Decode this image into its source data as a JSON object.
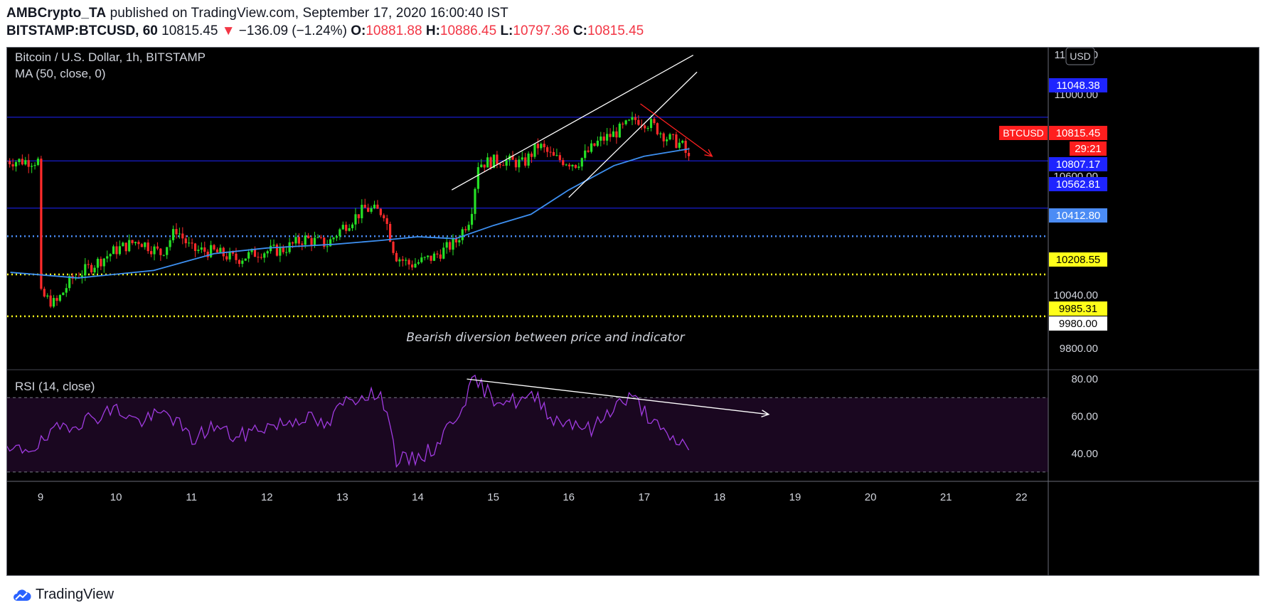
{
  "header": {
    "author": "AMBCrypto_TA",
    "published": " published on TradingView.com, September 17, 2020 16:00:40 IST",
    "symbol": "BITSTAMP:BTCUSD, 60",
    "last": "10815.45",
    "change_arrow": "▼",
    "change": "−136.09 (−1.24%)",
    "o_label": "O:",
    "o_value": "10881.88",
    "h_label": "H:",
    "h_value": "10886.45",
    "l_label": "L:",
    "l_value": "10797.36",
    "c_label": "C:",
    "c_value": "10815.45"
  },
  "legend": {
    "title": "Bitcoin / U.S. Dollar, 1h, BITSTAMP",
    "ma": "MA (50, close, 0)",
    "rsi": "RSI (14, close)",
    "currency_button": "USD"
  },
  "annotation": "Bearish diversion between price and indicator",
  "footer": {
    "brand": "TradingView"
  },
  "colors": {
    "up": "#26e026",
    "down": "#ff2b2b",
    "ma": "#3d8ff0",
    "rsi": "#a03be0",
    "level_blue": "#1e24ff",
    "level_dotted_blue": "#4b8cf5",
    "level_yellow": "#ffff1a",
    "trendline": "#ffffff",
    "bear_arrow": "#ff2020",
    "rsi_band": "#1a0720"
  },
  "chart_data": [
    {
      "type": "candlestick",
      "title": "Bitcoin / U.S. Dollar, 1h, BITSTAMP",
      "x_ticks": [
        "9",
        "10",
        "11",
        "12",
        "13",
        "14",
        "15",
        "16",
        "17",
        "18",
        "19",
        "20",
        "21",
        "22"
      ],
      "y_ticks": [
        "11400.00",
        "11000.00",
        "10600.00",
        "10040.00",
        "9800.00"
      ],
      "ylim": [
        9700,
        11420
      ],
      "close_series": [
        {
          "day": 9.0,
          "close": 10100
        },
        {
          "day": 9.2,
          "close": 10050
        },
        {
          "day": 9.4,
          "close": 10180
        },
        {
          "day": 9.7,
          "close": 10260
        },
        {
          "day": 10.0,
          "close": 10340
        },
        {
          "day": 10.3,
          "close": 10390
        },
        {
          "day": 10.6,
          "close": 10320
        },
        {
          "day": 10.8,
          "close": 10450
        },
        {
          "day": 11.0,
          "close": 10340
        },
        {
          "day": 11.3,
          "close": 10330
        },
        {
          "day": 11.6,
          "close": 10290
        },
        {
          "day": 11.9,
          "close": 10330
        },
        {
          "day": 12.2,
          "close": 10340
        },
        {
          "day": 12.5,
          "close": 10400
        },
        {
          "day": 12.8,
          "close": 10370
        },
        {
          "day": 13.0,
          "close": 10460
        },
        {
          "day": 13.3,
          "close": 10560
        },
        {
          "day": 13.55,
          "close": 10540
        },
        {
          "day": 13.7,
          "close": 10310
        },
        {
          "day": 13.9,
          "close": 10260
        },
        {
          "day": 14.2,
          "close": 10300
        },
        {
          "day": 14.5,
          "close": 10380
        },
        {
          "day": 14.7,
          "close": 10520
        },
        {
          "day": 14.8,
          "close": 10800
        },
        {
          "day": 15.1,
          "close": 10820
        },
        {
          "day": 15.4,
          "close": 10800
        },
        {
          "day": 15.6,
          "close": 10900
        },
        {
          "day": 15.8,
          "close": 10830
        },
        {
          "day": 16.1,
          "close": 10800
        },
        {
          "day": 16.4,
          "close": 10920
        },
        {
          "day": 16.6,
          "close": 10960
        },
        {
          "day": 16.9,
          "close": 11040
        },
        {
          "day": 17.1,
          "close": 11010
        },
        {
          "day": 17.3,
          "close": 10940
        },
        {
          "day": 17.5,
          "close": 10900
        },
        {
          "day": 17.6,
          "close": 10815
        }
      ],
      "ma50": {
        "name": "MA (50, close, 0)",
        "points": [
          {
            "day": 8.6,
            "value": 10220
          },
          {
            "day": 9.5,
            "value": 10190
          },
          {
            "day": 10.5,
            "value": 10230
          },
          {
            "day": 11.3,
            "value": 10320
          },
          {
            "day": 12.0,
            "value": 10350
          },
          {
            "day": 12.9,
            "value": 10370
          },
          {
            "day": 13.5,
            "value": 10390
          },
          {
            "day": 14.0,
            "value": 10410
          },
          {
            "day": 14.5,
            "value": 10400
          },
          {
            "day": 15.0,
            "value": 10470
          },
          {
            "day": 15.5,
            "value": 10530
          },
          {
            "day": 16.0,
            "value": 10660
          },
          {
            "day": 16.6,
            "value": 10790
          },
          {
            "day": 17.0,
            "value": 10840
          },
          {
            "day": 17.6,
            "value": 10880
          }
        ]
      },
      "levels": [
        {
          "value": 11048.38,
          "label": "11048.38",
          "style": "solid",
          "color": "#1e24ff",
          "label_bg": "#1e24ff",
          "label_fg": "#ffffff"
        },
        {
          "value": 10815.45,
          "label": "10815.45",
          "style": "solid",
          "color": "#1e24ff",
          "label_bg": "#ff1e1e",
          "label_fg": "#ffffff",
          "tag": "BTCUSD",
          "timer": "29:21"
        },
        {
          "value": 10807.17,
          "label": "10807.17",
          "style": "none",
          "label_bg": "#1e24ff",
          "label_fg": "#ffffff"
        },
        {
          "value": 10562.81,
          "label": "10562.81",
          "style": "solid",
          "color": "#1e24ff",
          "label_bg": "#1e24ff",
          "label_fg": "#ffffff"
        },
        {
          "value": 10412.8,
          "label": "10412.80",
          "style": "dotted",
          "color": "#4b8cf5",
          "label_bg": "#4b8cf5",
          "label_fg": "#ffffff"
        },
        {
          "value": 10208.55,
          "label": "10208.55",
          "style": "dotted",
          "color": "#ffff1a",
          "label_bg": "#ffff1a",
          "label_fg": "#000000"
        },
        {
          "value": 9985.31,
          "label": "9985.31",
          "style": "dotted",
          "color": "#ffff1a",
          "label_bg": "#ffff1a",
          "label_fg": "#000000"
        },
        {
          "value": 9980.0,
          "label": "9980.00",
          "style": "none",
          "label_bg": "#ffffff",
          "label_fg": "#000000"
        }
      ],
      "trendlines": [
        {
          "from": {
            "day": 14.45,
            "price": 10660
          },
          "to": {
            "day": 17.65,
            "price": 11380
          },
          "color": "#ffffff"
        },
        {
          "from": {
            "day": 16.0,
            "price": 10620
          },
          "to": {
            "day": 17.7,
            "price": 11290
          },
          "color": "#ffffff"
        },
        {
          "from": {
            "day": 16.95,
            "price": 11120
          },
          "to": {
            "day": 17.9,
            "price": 10840
          },
          "color": "#ff2020",
          "arrow": true
        }
      ]
    },
    {
      "type": "line",
      "title": "RSI (14, close)",
      "y_ticks": [
        "80.00",
        "60.00",
        "40.00"
      ],
      "ylim": [
        25,
        85
      ],
      "bands": [
        70,
        30
      ],
      "series": [
        {
          "points": [
            {
              "day": 8.55,
              "rsi": 40
            },
            {
              "day": 9.0,
              "rsi": 45
            },
            {
              "day": 9.3,
              "rsi": 55
            },
            {
              "day": 9.6,
              "rsi": 58
            },
            {
              "day": 10.0,
              "rsi": 64
            },
            {
              "day": 10.3,
              "rsi": 57
            },
            {
              "day": 10.7,
              "rsi": 62
            },
            {
              "day": 11.0,
              "rsi": 47
            },
            {
              "day": 11.3,
              "rsi": 55
            },
            {
              "day": 11.6,
              "rsi": 48
            },
            {
              "day": 11.9,
              "rsi": 54
            },
            {
              "day": 12.2,
              "rsi": 56
            },
            {
              "day": 12.5,
              "rsi": 60
            },
            {
              "day": 12.8,
              "rsi": 54
            },
            {
              "day": 13.0,
              "rsi": 67
            },
            {
              "day": 13.35,
              "rsi": 73
            },
            {
              "day": 13.6,
              "rsi": 66
            },
            {
              "day": 13.7,
              "rsi": 37
            },
            {
              "day": 13.9,
              "rsi": 36
            },
            {
              "day": 14.2,
              "rsi": 42
            },
            {
              "day": 14.5,
              "rsi": 60
            },
            {
              "day": 14.75,
              "rsi": 79
            },
            {
              "day": 15.0,
              "rsi": 70
            },
            {
              "day": 15.3,
              "rsi": 68
            },
            {
              "day": 15.6,
              "rsi": 70
            },
            {
              "day": 15.8,
              "rsi": 58
            },
            {
              "day": 16.1,
              "rsi": 57
            },
            {
              "day": 16.3,
              "rsi": 52
            },
            {
              "day": 16.6,
              "rsi": 66
            },
            {
              "day": 16.85,
              "rsi": 70
            },
            {
              "day": 17.0,
              "rsi": 63
            },
            {
              "day": 17.3,
              "rsi": 48
            },
            {
              "day": 17.5,
              "rsi": 46
            },
            {
              "day": 17.6,
              "rsi": 41
            }
          ]
        }
      ],
      "trendlines": [
        {
          "from": {
            "day": 14.65,
            "rsi": 80
          },
          "to": {
            "day": 18.65,
            "rsi": 61
          },
          "color": "#ffffff",
          "arrow": true
        }
      ]
    }
  ]
}
